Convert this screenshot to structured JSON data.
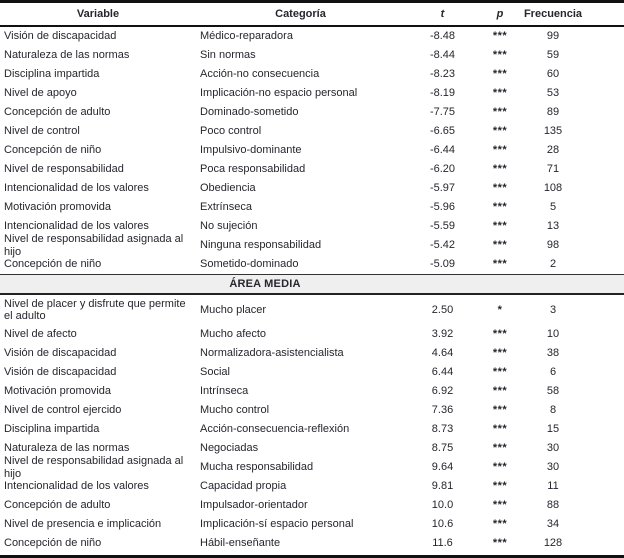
{
  "colors": {
    "text": "#26262e",
    "border": "#111111",
    "section_background": "#efefef"
  },
  "table": {
    "columns": {
      "variable": "Variable",
      "categoria": "Categoría",
      "t": "t",
      "p": "p",
      "frecuencia": "Frecuencia"
    },
    "section_label": "ÁREA MEDIA",
    "rows_top": [
      {
        "variable": "Visión de discapacidad",
        "categoria": "Médico-reparadora",
        "t": "-8.48",
        "p": "***",
        "frecuencia": "99"
      },
      {
        "variable": "Naturaleza de las normas",
        "categoria": "Sin normas",
        "t": "-8.44",
        "p": "***",
        "frecuencia": "59"
      },
      {
        "variable": "Disciplina impartida",
        "categoria": "Acción-no consecuencia",
        "t": "-8.23",
        "p": "***",
        "frecuencia": "60"
      },
      {
        "variable": "Nivel de apoyo",
        "categoria": "Implicación-no espacio personal",
        "t": "-8.19",
        "p": "***",
        "frecuencia": "53"
      },
      {
        "variable": "Concepción de adulto",
        "categoria": "Dominado-sometido",
        "t": "-7.75",
        "p": "***",
        "frecuencia": "89"
      },
      {
        "variable": "Nivel de control",
        "categoria": "Poco control",
        "t": "-6.65",
        "p": "***",
        "frecuencia": "135"
      },
      {
        "variable": "Concepción de niño",
        "categoria": "Impulsivo-dominante",
        "t": "-6.44",
        "p": "***",
        "frecuencia": "28"
      },
      {
        "variable": "Nivel de responsabilidad",
        "categoria": "Poca responsabilidad",
        "t": "-6.20",
        "p": "***",
        "frecuencia": "71"
      },
      {
        "variable": "Intencionalidad de los valores",
        "categoria": "Obediencia",
        "t": "-5.97",
        "p": "***",
        "frecuencia": "108"
      },
      {
        "variable": "Motivación promovida",
        "categoria": "Extrínseca",
        "t": "-5.96",
        "p": "***",
        "frecuencia": "5"
      },
      {
        "variable": "Intencionalidad de los valores",
        "categoria": "No sujeción",
        "t": "-5.59",
        "p": "***",
        "frecuencia": "13"
      },
      {
        "variable": "Nivel de responsabilidad asignada al hijo",
        "categoria": "Ninguna responsabilidad",
        "t": "-5.42",
        "p": "***",
        "frecuencia": "98"
      },
      {
        "variable": "Concepción de niño",
        "categoria": "Sometido-dominado",
        "t": "-5.09",
        "p": "***",
        "frecuencia": "2"
      }
    ],
    "rows_bottom": [
      {
        "variable": "Nivel de placer y disfrute que permite el adulto",
        "categoria": "Mucho placer",
        "t": "2.50",
        "p": "*",
        "frecuencia": "3"
      },
      {
        "variable": "Nivel de afecto",
        "categoria": "Mucho afecto",
        "t": "3.92",
        "p": "***",
        "frecuencia": "10"
      },
      {
        "variable": "Visión de discapacidad",
        "categoria": "Normalizadora-asistencialista",
        "t": "4.64",
        "p": "***",
        "frecuencia": "38"
      },
      {
        "variable": "Visión de discapacidad",
        "categoria": "Social",
        "t": "6.44",
        "p": "***",
        "frecuencia": "6"
      },
      {
        "variable": "Motivación promovida",
        "categoria": "Intrínseca",
        "t": "6.92",
        "p": "***",
        "frecuencia": "58"
      },
      {
        "variable": "Nivel de control ejercido",
        "categoria": "Mucho control",
        "t": "7.36",
        "p": "***",
        "frecuencia": "8"
      },
      {
        "variable": "Disciplina impartida",
        "categoria": "Acción-consecuencia-reflexión",
        "t": "8.73",
        "p": "***",
        "frecuencia": "15"
      },
      {
        "variable": "Naturaleza de las normas",
        "categoria": "Negociadas",
        "t": "8.75",
        "p": "***",
        "frecuencia": "30"
      },
      {
        "variable": "Nivel de responsabilidad asignada al hijo",
        "categoria": "Mucha responsabilidad",
        "t": "9.64",
        "p": "***",
        "frecuencia": "30"
      },
      {
        "variable": "Intencionalidad de los valores",
        "categoria": "Capacidad propia",
        "t": "9.81",
        "p": "***",
        "frecuencia": "11"
      },
      {
        "variable": "Concepción de adulto",
        "categoria": "Impulsador-orientador",
        "t": "10.0",
        "p": "***",
        "frecuencia": "88"
      },
      {
        "variable": "Nivel de presencia e implicación",
        "categoria": "Implicación-sí espacio personal",
        "t": "10.6",
        "p": "***",
        "frecuencia": "34"
      },
      {
        "variable": "Concepción de niño",
        "categoria": "Hábil-enseñante",
        "t": "11.6",
        "p": "***",
        "frecuencia": "128"
      }
    ]
  }
}
